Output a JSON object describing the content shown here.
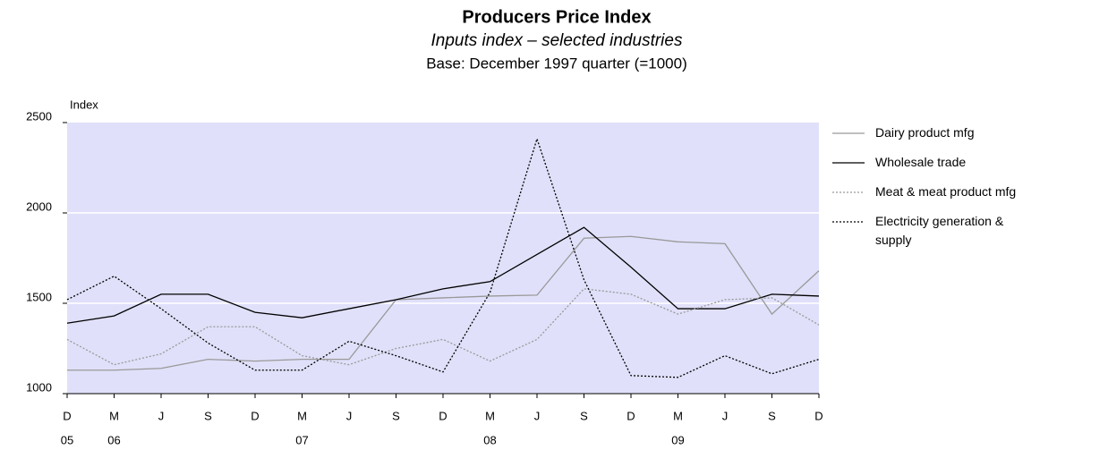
{
  "chart_data": {
    "type": "line",
    "title": "Producers Price Index",
    "subtitle": "Inputs index – selected industries",
    "note": "Base: December 1997 quarter (=1000)",
    "y_label": "Index",
    "categories": [
      "D",
      "M",
      "J",
      "S",
      "D",
      "M",
      "J",
      "S",
      "D",
      "M",
      "J",
      "S",
      "D",
      "M",
      "J",
      "S",
      "D"
    ],
    "years": [
      "05",
      "06",
      null,
      null,
      null,
      "07",
      null,
      null,
      null,
      "08",
      null,
      null,
      null,
      "09",
      null,
      null,
      null
    ],
    "ylim": [
      1000,
      2500
    ],
    "yticks": [
      1000,
      1500,
      2000,
      2500
    ],
    "grid": true,
    "background": "#e0e0fa",
    "series": [
      {
        "name": "Dairy product mfg",
        "color": "#999999",
        "dash": false,
        "values": [
          1130,
          1130,
          1140,
          1190,
          1180,
          1190,
          1190,
          1520,
          1530,
          1540,
          1545,
          1860,
          1870,
          1840,
          1830,
          1440,
          1680
        ]
      },
      {
        "name": "Wholesale trade",
        "color": "#000000",
        "dash": false,
        "values": [
          1390,
          1430,
          1550,
          1550,
          1450,
          1420,
          1470,
          1520,
          1580,
          1620,
          1770,
          1920,
          1700,
          1470,
          1470,
          1550,
          1540
        ]
      },
      {
        "name": "Meat & meat product mfg",
        "color": "#999999",
        "dash": true,
        "values": [
          1300,
          1160,
          1220,
          1370,
          1370,
          1210,
          1160,
          1250,
          1300,
          1180,
          1300,
          1580,
          1550,
          1440,
          1520,
          1530,
          1380
        ]
      },
      {
        "name": "Electricity generation & supply",
        "color": "#000000",
        "dash": true,
        "values": [
          1520,
          1650,
          1470,
          1280,
          1130,
          1130,
          1290,
          1210,
          1120,
          1560,
          2410,
          1630,
          1100,
          1090,
          1210,
          1110,
          1190
        ]
      }
    ]
  }
}
